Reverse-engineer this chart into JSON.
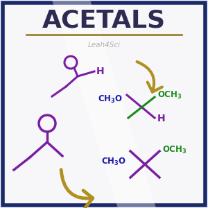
{
  "title": "ACETALS",
  "title_color": "#2d2b52",
  "title_fontsize": 26,
  "watermark": "Leah4Sci",
  "watermark_color": "#b0b0b0",
  "border_color": "#1a2a6c",
  "border_width": 4,
  "background_color": "#f7f7fa",
  "underline_color": "#9a8530",
  "purple": "#7b1fa2",
  "dark_blue": "#1a1aaa",
  "green": "#1a8a1a",
  "gold": "#b09020"
}
